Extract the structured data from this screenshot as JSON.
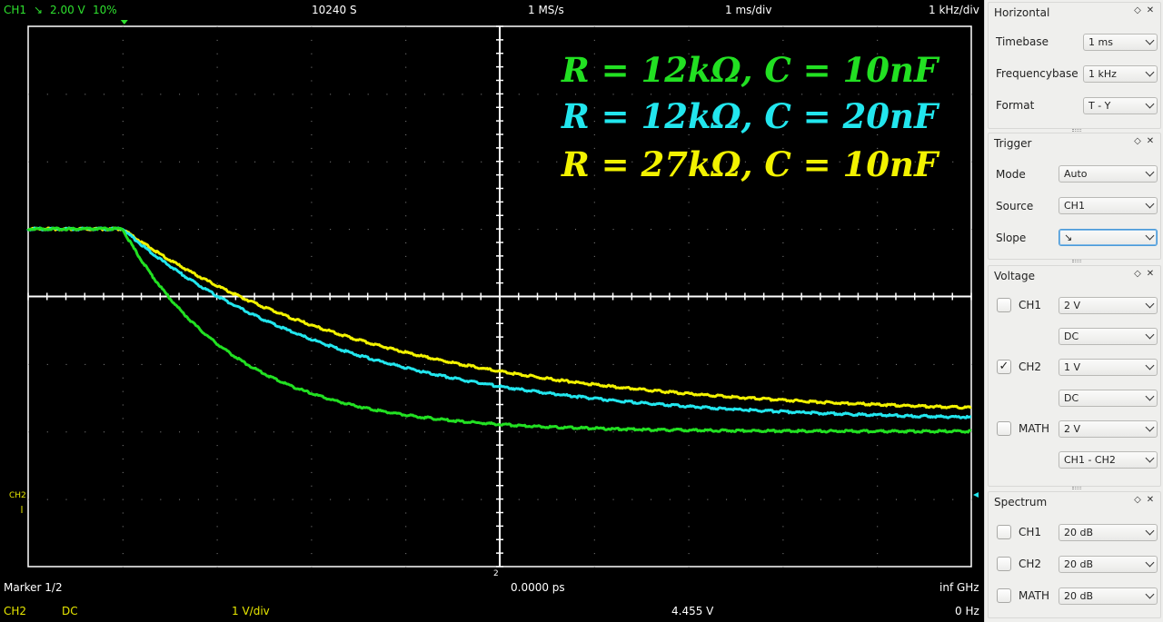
{
  "status_top": {
    "channel": "CH1",
    "slope_icon": "↘",
    "level": "2.00 V",
    "pretrigger": "10%",
    "samples": "10240 S",
    "samplerate": "1 MS/s",
    "timebase": "1 ms/div",
    "freqbase": "1 kHz/div"
  },
  "legend": [
    {
      "text": "R = 12kΩ, C = 10nF",
      "color": "#22e022"
    },
    {
      "text": "R = 12kΩ, C = 20nF",
      "color": "#22e6ee"
    },
    {
      "text": "R = 27kΩ, C = 10nF",
      "color": "#f2f200"
    }
  ],
  "markers": {
    "left_channel": "CH2",
    "bottom_marker": "2"
  },
  "status_bottom": {
    "marker": "Marker 1/2",
    "time": "0.0000 ps",
    "freq": "inf GHz",
    "ch": "CH2",
    "coupling": "DC",
    "gain": "1 V/div",
    "voltage": "4.455 V",
    "frequency": "0 Hz"
  },
  "panel": {
    "horizontal": {
      "title": "Horizontal",
      "timebase_label": "Timebase",
      "timebase_value": "1 ms",
      "freqbase_label": "Frequencybase",
      "freqbase_value": "1 kHz",
      "format_label": "Format",
      "format_value": "T - Y"
    },
    "trigger": {
      "title": "Trigger",
      "mode_label": "Mode",
      "mode_value": "Auto",
      "source_label": "Source",
      "source_value": "CH1",
      "slope_label": "Slope",
      "slope_value": "↘"
    },
    "voltage": {
      "title": "Voltage",
      "ch1_label": "CH1",
      "ch1_checked": false,
      "ch1_gain": "2 V",
      "ch1_coupling": "DC",
      "ch2_label": "CH2",
      "ch2_checked": true,
      "ch2_gain": "1 V",
      "ch2_coupling": "DC",
      "math_label": "MATH",
      "math_checked": false,
      "math_gain": "2 V",
      "math_mode": "CH1 - CH2"
    },
    "spectrum": {
      "title": "Spectrum",
      "ch1_label": "CH1",
      "ch1_value": "20 dB",
      "ch2_label": "CH2",
      "ch2_value": "20 dB",
      "math_label": "MATH",
      "math_value": "20 dB"
    }
  },
  "chart_data": {
    "type": "line",
    "xlabel": "",
    "ylabel": "",
    "x_unit": "div",
    "y_unit": "div",
    "xlim": [
      0,
      10
    ],
    "ylim": [
      -4,
      4
    ],
    "grid": true,
    "trigger_x": 1.0,
    "series": [
      {
        "name": "R = 12kΩ, C = 10nF",
        "color": "#22e022",
        "start_level": 1.0,
        "end_level": -2.0,
        "tau_div": 1.2
      },
      {
        "name": "R = 12kΩ, C = 20nF",
        "color": "#22e6ee",
        "start_level": 1.0,
        "end_level": -1.85,
        "tau_div": 2.35
      },
      {
        "name": "R = 27kΩ, C = 10nF",
        "color": "#f2f200",
        "start_level": 1.0,
        "end_level": -1.75,
        "tau_div": 2.75
      }
    ]
  }
}
